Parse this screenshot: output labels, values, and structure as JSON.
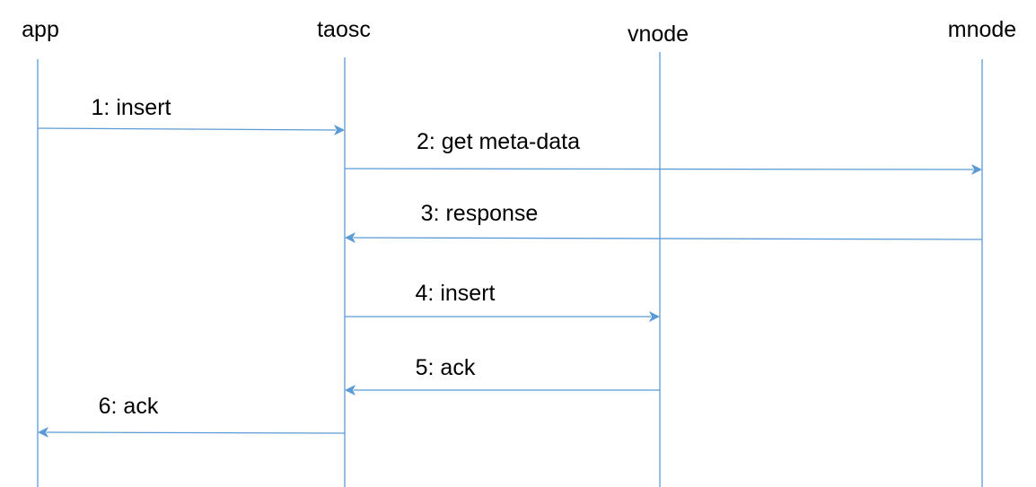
{
  "diagram": {
    "type": "sequence",
    "line_color": "#5b9bd5",
    "participants": [
      {
        "id": "app",
        "label": "app"
      },
      {
        "id": "taosc",
        "label": "taosc"
      },
      {
        "id": "vnode",
        "label": "vnode"
      },
      {
        "id": "mnode",
        "label": "mnode"
      }
    ],
    "messages": [
      {
        "from": "app",
        "to": "taosc",
        "label": "1: insert"
      },
      {
        "from": "taosc",
        "to": "mnode",
        "label": "2: get meta-data"
      },
      {
        "from": "mnode",
        "to": "taosc",
        "label": "3: response"
      },
      {
        "from": "taosc",
        "to": "vnode",
        "label": "4: insert"
      },
      {
        "from": "vnode",
        "to": "taosc",
        "label": "5: ack"
      },
      {
        "from": "taosc",
        "to": "app",
        "label": "6: ack"
      }
    ]
  }
}
